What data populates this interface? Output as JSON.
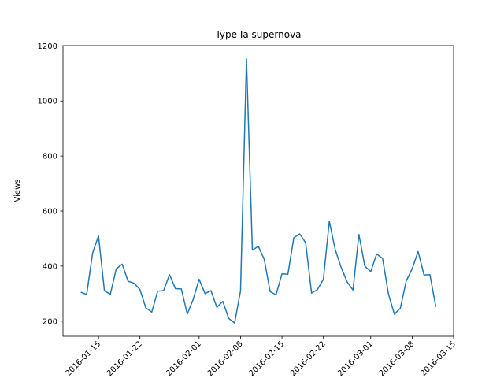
{
  "chart_data": {
    "type": "line",
    "title": "Type Ia supernova",
    "y_label": "Views",
    "x": [
      "2016-01-12",
      "2016-01-13",
      "2016-01-14",
      "2016-01-15",
      "2016-01-16",
      "2016-01-17",
      "2016-01-18",
      "2016-01-19",
      "2016-01-20",
      "2016-01-21",
      "2016-01-22",
      "2016-01-23",
      "2016-01-24",
      "2016-01-25",
      "2016-01-26",
      "2016-01-27",
      "2016-01-28",
      "2016-01-29",
      "2016-01-30",
      "2016-01-31",
      "2016-02-01",
      "2016-02-02",
      "2016-02-03",
      "2016-02-04",
      "2016-02-05",
      "2016-02-06",
      "2016-02-07",
      "2016-02-08",
      "2016-02-09",
      "2016-02-10",
      "2016-02-11",
      "2016-02-12",
      "2016-02-13",
      "2016-02-14",
      "2016-02-15",
      "2016-02-16",
      "2016-02-17",
      "2016-02-18",
      "2016-02-19",
      "2016-02-20",
      "2016-02-21",
      "2016-02-22",
      "2016-02-23",
      "2016-02-24",
      "2016-02-25",
      "2016-02-26",
      "2016-02-27",
      "2016-02-28",
      "2016-02-29",
      "2016-03-01",
      "2016-03-02",
      "2016-03-03",
      "2016-03-04",
      "2016-03-05",
      "2016-03-06",
      "2016-03-07",
      "2016-03-08",
      "2016-03-09",
      "2016-03-10",
      "2016-03-11",
      "2016-03-12"
    ],
    "series": [
      {
        "name": "Views",
        "color": "#1f77b4",
        "values": [
          305,
          297,
          447,
          510,
          310,
          298,
          390,
          407,
          345,
          338,
          315,
          248,
          233,
          309,
          311,
          369,
          318,
          317,
          226,
          279,
          352,
          300,
          311,
          250,
          272,
          210,
          193,
          310,
          1153,
          458,
          472,
          425,
          307,
          296,
          372,
          370,
          503,
          517,
          485,
          302,
          315,
          352,
          563,
          460,
          395,
          343,
          313,
          515,
          400,
          380,
          444,
          428,
          298,
          225,
          247,
          346,
          390,
          453,
          368,
          369,
          252
        ]
      }
    ],
    "xlim": [
      "2016-01-09",
      "2016-03-15"
    ],
    "xticks": [
      "2016-01-15",
      "2016-01-22",
      "2016-02-01",
      "2016-02-08",
      "2016-02-15",
      "2016-02-22",
      "2016-03-01",
      "2016-03-08",
      "2016-03-15"
    ],
    "ylim": [
      145,
      1201
    ],
    "yticks": [
      200,
      400,
      600,
      800,
      1000,
      1200
    ]
  }
}
